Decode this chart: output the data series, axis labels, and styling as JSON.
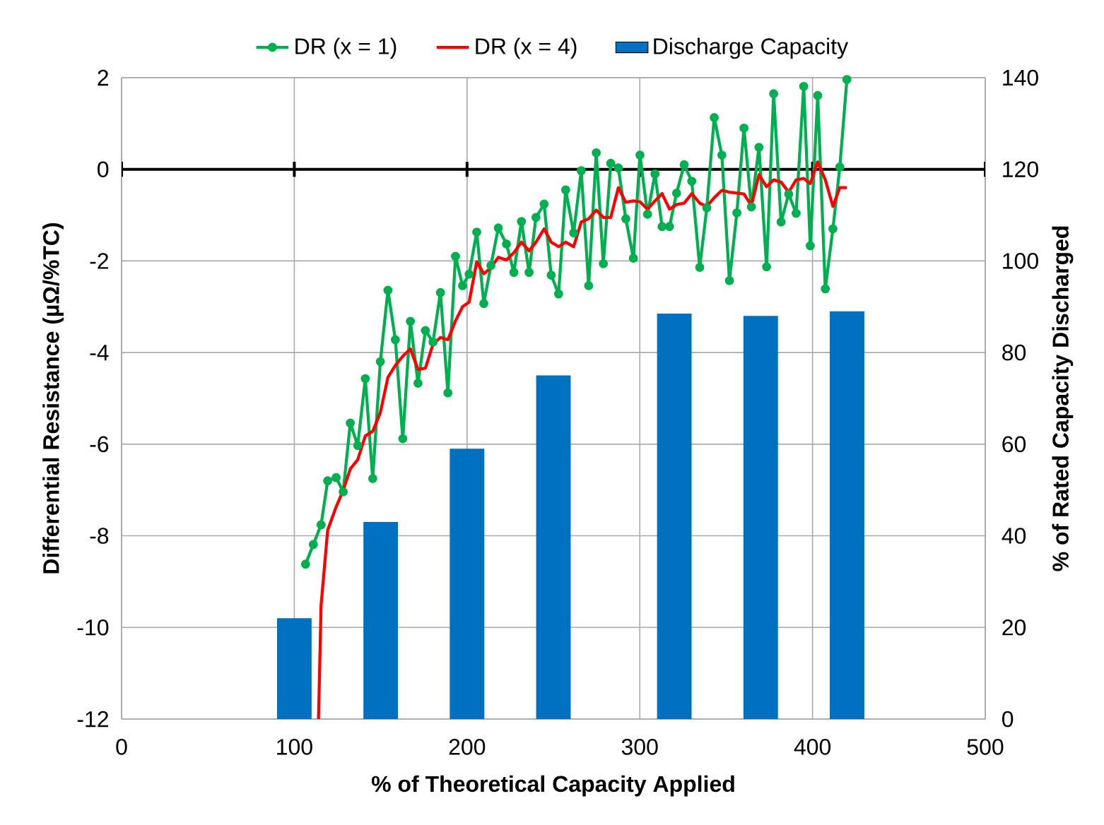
{
  "chart_data": {
    "type": "line",
    "xlabel": "% of Theoretical Capacity Applied",
    "ylabel": "Differential Resistance (µΩ/%TC)",
    "y2label": "% of Rated Capacity Discharged",
    "xlim": [
      0,
      500
    ],
    "xticks": [
      0,
      100,
      200,
      300,
      400,
      500
    ],
    "ylim": [
      -12,
      2
    ],
    "yticks": [
      -12,
      -10,
      -8,
      -6,
      -4,
      -2,
      0,
      2
    ],
    "y2lim": [
      0,
      140
    ],
    "y2ticks": [
      0,
      20,
      40,
      60,
      80,
      100,
      120,
      140
    ],
    "grid": true,
    "legend": "top",
    "ref_lines": [
      {
        "axis": "y",
        "value": 0,
        "color": "#000000"
      }
    ],
    "series": [
      {
        "name": "DR (x = 1)",
        "color": "#00b050",
        "marker": "circle",
        "x": [
          106.5,
          111,
          115.5,
          119.3,
          124.2,
          128.3,
          132.4,
          136.7,
          141.1,
          145.4,
          149.8,
          154.2,
          158.5,
          162.8,
          167.2,
          171.6,
          175.9,
          180.3,
          184.6,
          188.9,
          193.3,
          197.4,
          201.2,
          205.6,
          209.7,
          213.8,
          218.1,
          222.8,
          227.1,
          231.5,
          235.9,
          239.9,
          244.6,
          248.7,
          253,
          257.1,
          261.7,
          266.1,
          270.4,
          274.8,
          278.9,
          283.2,
          287.6,
          291.9,
          296.3,
          300.1,
          304.5,
          308.8,
          312.9,
          317.2,
          321.3,
          325.7,
          330.1,
          334.7,
          338.8,
          343.1,
          347.5,
          351.9,
          356.2,
          360.3,
          364.6,
          369,
          373.4,
          377.5,
          381.8,
          386.2,
          390.5,
          394.9,
          398.7,
          403,
          407.4,
          411.8,
          415.8,
          419.9
        ],
        "values": [
          -8.62,
          -8.19,
          -7.76,
          -6.8,
          -6.73,
          -7.04,
          -5.54,
          -6.03,
          -4.57,
          -6.75,
          -4.2,
          -2.64,
          -3.72,
          -5.88,
          -3.32,
          -4.67,
          -3.52,
          -3.77,
          -2.69,
          -4.88,
          -1.9,
          -2.54,
          -2.29,
          -1.37,
          -2.93,
          -2.1,
          -1.28,
          -1.63,
          -2.25,
          -1.14,
          -2.25,
          -1.05,
          -0.76,
          -2.31,
          -2.72,
          -0.45,
          -1.39,
          -0.03,
          -2.54,
          0.36,
          -2.06,
          0.13,
          0.03,
          -1.08,
          -1.94,
          0.31,
          -0.98,
          -0.1,
          -1.25,
          -1.25,
          -0.52,
          0.1,
          -0.26,
          -2.14,
          -0.84,
          1.13,
          0.31,
          -2.43,
          -0.95,
          0.9,
          -0.82,
          0.48,
          -2.13,
          1.65,
          -1.15,
          -0.54,
          -0.96,
          1.81,
          -1.67,
          1.61,
          -2.61,
          -1.3,
          0.05,
          1.96
        ]
      },
      {
        "name": "DR (x = 4)",
        "color": "#ff0000",
        "marker": "none",
        "x": [
          114,
          115.5,
          119.3,
          124.2,
          128.3,
          132.4,
          136.7,
          141.1,
          145.4,
          149.8,
          154.2,
          158.5,
          162.8,
          167.2,
          171.6,
          175.9,
          180.3,
          184.6,
          188.9,
          193.3,
          197.4,
          201.2,
          205.6,
          209.7,
          213.8,
          218.1,
          222.8,
          227.1,
          231.5,
          235.9,
          239.9,
          244.6,
          248.7,
          253,
          257.1,
          261.7,
          266.1,
          270.4,
          274.8,
          278.9,
          283.2,
          287.6,
          291.9,
          296.3,
          300.1,
          304.5,
          308.8,
          312.9,
          317.2,
          321.3,
          325.7,
          330.1,
          334.7,
          338.8,
          343.1,
          347.5,
          351.9,
          356.2,
          360.3,
          364.6,
          369,
          373.4,
          377.5,
          381.8,
          386.2,
          390.5,
          394.9,
          398.7,
          403,
          407.4,
          411.8,
          415.8,
          419.9
        ],
        "values": [
          -12,
          -9.52,
          -7.88,
          -7.37,
          -7.01,
          -6.54,
          -6.34,
          -5.82,
          -5.72,
          -5.31,
          -4.54,
          -4.28,
          -4.08,
          -3.92,
          -4.37,
          -4.34,
          -3.82,
          -3.67,
          -3.72,
          -3.31,
          -3,
          -2.9,
          -2.02,
          -2.28,
          -2.15,
          -1.92,
          -1.98,
          -1.82,
          -1.59,
          -1.78,
          -1.59,
          -1.3,
          -1.59,
          -1.69,
          -1.59,
          -1.69,
          -1.15,
          -1.08,
          -0.89,
          -1.05,
          -1.05,
          -0.4,
          -0.72,
          -0.69,
          -0.71,
          -0.87,
          -0.69,
          -0.53,
          -0.87,
          -0.77,
          -0.74,
          -0.53,
          -0.74,
          -0.81,
          -0.62,
          -0.46,
          -0.5,
          -0.52,
          -0.54,
          -0.79,
          -0.12,
          -0.38,
          -0.23,
          -0.28,
          -0.5,
          -0.23,
          -0.2,
          -0.31,
          0.16,
          -0.23,
          -0.81,
          -0.4,
          -0.4
        ]
      },
      {
        "name": "Discharge Capacity",
        "type": "bar",
        "axis": "y2",
        "color": "#0070c0",
        "x": [
          100,
          150,
          200,
          250,
          320,
          370,
          420
        ],
        "values": [
          22,
          43,
          59,
          75,
          88.5,
          88,
          89
        ]
      }
    ]
  }
}
